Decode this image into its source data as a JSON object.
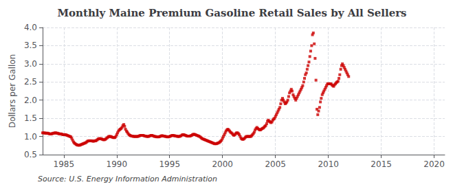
{
  "chart_data": {
    "type": "scatter",
    "title": "Monthly Maine Premium Gasoline Retail Sales by All Sellers",
    "y_label": "Dollars per Gallon",
    "source": "Source: U.S. Energy Information Administration",
    "color": "#cc0000",
    "marker": "square",
    "grid": true,
    "xlim": [
      1983,
      2021
    ],
    "ylim": [
      0.5,
      4.0
    ],
    "xticks": [
      1985,
      1990,
      1995,
      2000,
      2005,
      2010,
      2015,
      2020
    ],
    "yticks": [
      0.5,
      {
        "value": 1.0,
        "label": "1.0"
      },
      1.5,
      {
        "value": 2.0,
        "label": "2.0"
      },
      2.5,
      {
        "value": 3.0,
        "label": "3.0"
      },
      3.5,
      {
        "value": 4.0,
        "label": "4.0"
      }
    ],
    "x": [
      1983.0,
      1983.08,
      1983.17,
      1983.25,
      1983.33,
      1983.42,
      1983.5,
      1983.58,
      1983.67,
      1983.75,
      1983.83,
      1983.92,
      1984.0,
      1984.08,
      1984.17,
      1984.25,
      1984.33,
      1984.42,
      1984.5,
      1984.58,
      1984.67,
      1984.75,
      1984.83,
      1984.92,
      1985.0,
      1985.08,
      1985.17,
      1985.25,
      1985.33,
      1985.42,
      1985.5,
      1985.58,
      1985.67,
      1985.75,
      1985.83,
      1985.92,
      1986.0,
      1986.08,
      1986.17,
      1986.25,
      1986.33,
      1986.42,
      1986.5,
      1986.58,
      1986.67,
      1986.75,
      1986.83,
      1986.92,
      1987.0,
      1987.08,
      1987.17,
      1987.25,
      1987.33,
      1987.42,
      1987.5,
      1987.58,
      1987.67,
      1987.75,
      1987.83,
      1987.92,
      1988.0,
      1988.08,
      1988.17,
      1988.25,
      1988.33,
      1988.42,
      1988.5,
      1988.58,
      1988.67,
      1988.75,
      1988.83,
      1988.92,
      1989.0,
      1989.08,
      1989.17,
      1989.25,
      1989.33,
      1989.42,
      1989.5,
      1989.58,
      1989.67,
      1989.75,
      1989.83,
      1989.92,
      1990.0,
      1990.08,
      1990.17,
      1990.25,
      1990.33,
      1990.42,
      1990.5,
      1990.58,
      1990.67,
      1990.75,
      1990.83,
      1990.92,
      1991.0,
      1991.08,
      1991.17,
      1991.25,
      1991.33,
      1991.42,
      1991.5,
      1991.58,
      1991.67,
      1991.75,
      1991.83,
      1991.92,
      1992.0,
      1992.08,
      1992.17,
      1992.25,
      1992.33,
      1992.42,
      1992.5,
      1992.58,
      1992.67,
      1992.75,
      1992.83,
      1992.92,
      1993.0,
      1993.08,
      1993.17,
      1993.25,
      1993.33,
      1993.42,
      1993.5,
      1993.58,
      1993.67,
      1993.75,
      1993.83,
      1993.92,
      1994.0,
      1994.08,
      1994.17,
      1994.25,
      1994.33,
      1994.42,
      1994.5,
      1994.58,
      1994.67,
      1994.75,
      1994.83,
      1994.92,
      1995.0,
      1995.08,
      1995.17,
      1995.25,
      1995.33,
      1995.42,
      1995.5,
      1995.58,
      1995.67,
      1995.75,
      1995.83,
      1995.92,
      1996.0,
      1996.08,
      1996.17,
      1996.25,
      1996.33,
      1996.42,
      1996.5,
      1996.58,
      1996.67,
      1996.75,
      1996.83,
      1996.92,
      1997.0,
      1997.08,
      1997.17,
      1997.25,
      1997.33,
      1997.42,
      1997.5,
      1997.58,
      1997.67,
      1997.75,
      1997.83,
      1997.92,
      1998.0,
      1998.08,
      1998.17,
      1998.25,
      1998.33,
      1998.42,
      1998.5,
      1998.58,
      1998.67,
      1998.75,
      1998.83,
      1998.92,
      1999.0,
      1999.08,
      1999.17,
      1999.25,
      1999.33,
      1999.42,
      1999.5,
      1999.58,
      1999.67,
      1999.75,
      1999.83,
      1999.92,
      2000.0,
      2000.08,
      2000.17,
      2000.25,
      2000.33,
      2000.42,
      2000.5,
      2000.58,
      2000.67,
      2000.75,
      2000.83,
      2000.92,
      2001.0,
      2001.08,
      2001.17,
      2001.25,
      2001.33,
      2001.42,
      2001.5,
      2001.58,
      2001.67,
      2001.75,
      2001.83,
      2001.92,
      2002.0,
      2002.08,
      2002.17,
      2002.25,
      2002.33,
      2002.42,
      2002.5,
      2002.58,
      2002.67,
      2002.75,
      2002.83,
      2002.92,
      2003.0,
      2003.08,
      2003.17,
      2003.25,
      2003.33,
      2003.42,
      2003.5,
      2003.58,
      2003.67,
      2003.75,
      2003.83,
      2003.92,
      2004.0,
      2004.08,
      2004.17,
      2004.25,
      2004.33,
      2004.42,
      2004.5,
      2004.58,
      2004.67,
      2004.75,
      2004.83,
      2004.92,
      2005.0,
      2005.08,
      2005.17,
      2005.25,
      2005.33,
      2005.42,
      2005.5,
      2005.58,
      2005.67,
      2005.75,
      2005.83,
      2005.92,
      2006.0,
      2006.08,
      2006.17,
      2006.25,
      2006.33,
      2006.42,
      2006.5,
      2006.58,
      2006.67,
      2006.75,
      2006.83,
      2006.92,
      2007.0,
      2007.08,
      2007.17,
      2007.25,
      2007.33,
      2007.42,
      2007.5,
      2007.58,
      2007.67,
      2007.75,
      2007.83,
      2007.92,
      2008.0,
      2008.08,
      2008.17,
      2008.25,
      2008.33,
      2008.42,
      2008.5,
      2008.58,
      2008.67,
      2008.75,
      2008.83,
      2008.92,
      2009.0,
      2009.08,
      2009.17,
      2009.25,
      2009.33,
      2009.42,
      2009.5,
      2009.58,
      2009.67,
      2009.75,
      2009.83,
      2009.92,
      2010.0,
      2010.08,
      2010.17,
      2010.25,
      2010.33,
      2010.42,
      2010.5,
      2010.58,
      2010.67,
      2010.75,
      2010.83,
      2010.92,
      2011.0,
      2011.08,
      2011.17,
      2011.25,
      2011.33,
      2011.42,
      2011.5,
      2011.58,
      2011.67,
      2011.75,
      2011.83,
      2011.92
    ],
    "values": [
      1.1,
      1.1,
      1.1,
      1.09,
      1.09,
      1.09,
      1.09,
      1.08,
      1.07,
      1.07,
      1.07,
      1.08,
      1.09,
      1.09,
      1.1,
      1.1,
      1.09,
      1.09,
      1.08,
      1.07,
      1.07,
      1.07,
      1.06,
      1.05,
      1.05,
      1.05,
      1.05,
      1.04,
      1.03,
      1.02,
      1.01,
      1.0,
      0.99,
      0.95,
      0.9,
      0.85,
      0.82,
      0.8,
      0.78,
      0.77,
      0.76,
      0.76,
      0.76,
      0.77,
      0.78,
      0.79,
      0.8,
      0.81,
      0.82,
      0.83,
      0.85,
      0.87,
      0.88,
      0.88,
      0.88,
      0.88,
      0.88,
      0.87,
      0.87,
      0.88,
      0.88,
      0.89,
      0.91,
      0.93,
      0.94,
      0.94,
      0.94,
      0.93,
      0.92,
      0.91,
      0.91,
      0.92,
      0.94,
      0.96,
      0.98,
      1.0,
      1.0,
      1.0,
      0.99,
      0.98,
      0.97,
      0.97,
      0.97,
      1.0,
      1.05,
      1.1,
      1.15,
      1.18,
      1.2,
      1.22,
      1.25,
      1.3,
      1.33,
      1.28,
      1.2,
      1.15,
      1.12,
      1.08,
      1.05,
      1.03,
      1.02,
      1.01,
      1.01,
      1.0,
      1.0,
      1.0,
      1.0,
      1.0,
      1.0,
      1.01,
      1.02,
      1.03,
      1.03,
      1.03,
      1.03,
      1.02,
      1.01,
      1.01,
      1.0,
      1.0,
      1.0,
      1.01,
      1.02,
      1.03,
      1.03,
      1.02,
      1.01,
      1.0,
      1.0,
      0.99,
      0.99,
      0.99,
      0.99,
      1.0,
      1.01,
      1.02,
      1.02,
      1.01,
      1.01,
      1.0,
      1.0,
      0.99,
      0.99,
      0.99,
      1.0,
      1.01,
      1.02,
      1.03,
      1.03,
      1.02,
      1.02,
      1.01,
      1.01,
      1.0,
      1.0,
      1.0,
      1.01,
      1.02,
      1.04,
      1.05,
      1.05,
      1.04,
      1.03,
      1.02,
      1.01,
      1.01,
      1.01,
      1.01,
      1.02,
      1.03,
      1.05,
      1.06,
      1.06,
      1.05,
      1.04,
      1.03,
      1.02,
      1.01,
      1.0,
      0.98,
      0.96,
      0.94,
      0.93,
      0.92,
      0.91,
      0.9,
      0.89,
      0.88,
      0.87,
      0.86,
      0.85,
      0.84,
      0.83,
      0.82,
      0.81,
      0.8,
      0.8,
      0.8,
      0.81,
      0.82,
      0.83,
      0.85,
      0.87,
      0.9,
      0.95,
      1.0,
      1.05,
      1.1,
      1.15,
      1.18,
      1.2,
      1.18,
      1.15,
      1.12,
      1.1,
      1.08,
      1.05,
      1.03,
      1.05,
      1.08,
      1.1,
      1.1,
      1.08,
      1.05,
      1.0,
      0.95,
      0.93,
      0.92,
      0.93,
      0.95,
      0.98,
      1.0,
      1.0,
      1.0,
      1.0,
      1.0,
      1.0,
      1.02,
      1.05,
      1.08,
      1.12,
      1.18,
      1.22,
      1.25,
      1.22,
      1.2,
      1.18,
      1.18,
      1.2,
      1.22,
      1.23,
      1.25,
      1.28,
      1.3,
      1.35,
      1.42,
      1.45,
      1.42,
      1.4,
      1.38,
      1.4,
      1.45,
      1.48,
      1.5,
      1.55,
      1.6,
      1.65,
      1.7,
      1.75,
      1.8,
      1.9,
      2.0,
      2.05,
      2.0,
      1.95,
      1.9,
      1.92,
      1.95,
      2.0,
      2.1,
      2.2,
      2.25,
      2.3,
      2.25,
      2.15,
      2.1,
      2.05,
      2.0,
      2.05,
      2.1,
      2.15,
      2.2,
      2.25,
      2.3,
      2.35,
      2.4,
      2.5,
      2.6,
      2.7,
      2.75,
      2.85,
      2.95,
      3.05,
      3.2,
      3.35,
      3.5,
      3.8,
      3.85,
      3.55,
      3.15,
      2.55,
      1.75,
      1.6,
      1.7,
      1.8,
      1.95,
      2.05,
      2.15,
      2.2,
      2.25,
      2.3,
      2.35,
      2.4,
      2.45,
      2.45,
      2.45,
      2.45,
      2.45,
      2.42,
      2.4,
      2.38,
      2.42,
      2.45,
      2.48,
      2.5,
      2.52,
      2.6,
      2.7,
      2.85,
      2.95,
      3.0,
      2.95,
      2.9,
      2.85,
      2.8,
      2.75,
      2.7,
      2.65
    ]
  }
}
